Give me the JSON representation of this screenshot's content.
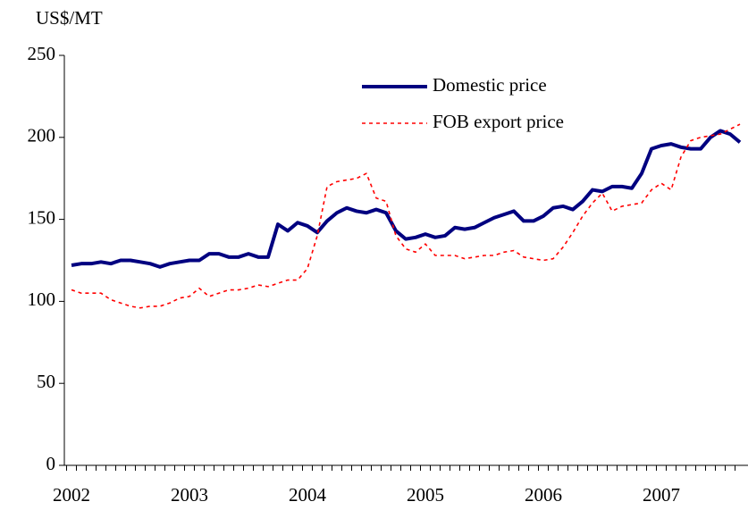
{
  "chart_data": {
    "type": "line",
    "y_axis_label": "US$/MT",
    "categories": [
      "2002",
      null,
      null,
      null,
      null,
      null,
      null,
      null,
      null,
      null,
      null,
      null,
      "2003",
      null,
      null,
      null,
      null,
      null,
      null,
      null,
      null,
      null,
      null,
      null,
      "2004",
      null,
      null,
      null,
      null,
      null,
      null,
      null,
      null,
      null,
      null,
      null,
      "2005",
      null,
      null,
      null,
      null,
      null,
      null,
      null,
      null,
      null,
      null,
      null,
      "2006",
      null,
      null,
      null,
      null,
      null,
      null,
      null,
      null,
      null,
      null,
      null,
      "2007",
      null,
      null,
      null,
      null,
      null,
      null,
      null,
      null
    ],
    "series": [
      {
        "name": "Domestic price",
        "color": "#000080",
        "style": "solid",
        "values": [
          122,
          123,
          123,
          124,
          123,
          125,
          125,
          124,
          123,
          121,
          123,
          124,
          125,
          125,
          129,
          129,
          127,
          127,
          129,
          127,
          127,
          147,
          143,
          148,
          146,
          142,
          149,
          154,
          157,
          155,
          154,
          156,
          154,
          143,
          138,
          139,
          141,
          139,
          140,
          145,
          144,
          145,
          148,
          151,
          153,
          155,
          149,
          149,
          152,
          157,
          158,
          156,
          161,
          168,
          167,
          170,
          170,
          169,
          178,
          193,
          195,
          196,
          194,
          193,
          193,
          200,
          204,
          202,
          197
        ]
      },
      {
        "name": "FOB export price",
        "color": "#ff0000",
        "style": "dotted",
        "values": [
          107,
          105,
          105,
          105,
          101,
          99,
          97,
          96,
          97,
          97,
          99,
          102,
          103,
          108,
          103,
          105,
          107,
          107,
          108,
          110,
          109,
          111,
          113,
          113,
          120,
          140,
          170,
          173,
          174,
          175,
          178,
          163,
          161,
          140,
          132,
          130,
          135,
          128,
          128,
          128,
          126,
          127,
          128,
          128,
          130,
          131,
          127,
          126,
          125,
          126,
          133,
          142,
          152,
          160,
          166,
          155,
          158,
          159,
          160,
          168,
          172,
          168,
          188,
          198,
          200,
          201,
          202,
          205,
          208
        ]
      }
    ],
    "ylim": [
      0,
      250
    ],
    "yticks": [
      0,
      50,
      100,
      150,
      200,
      250
    ],
    "grid": false
  }
}
